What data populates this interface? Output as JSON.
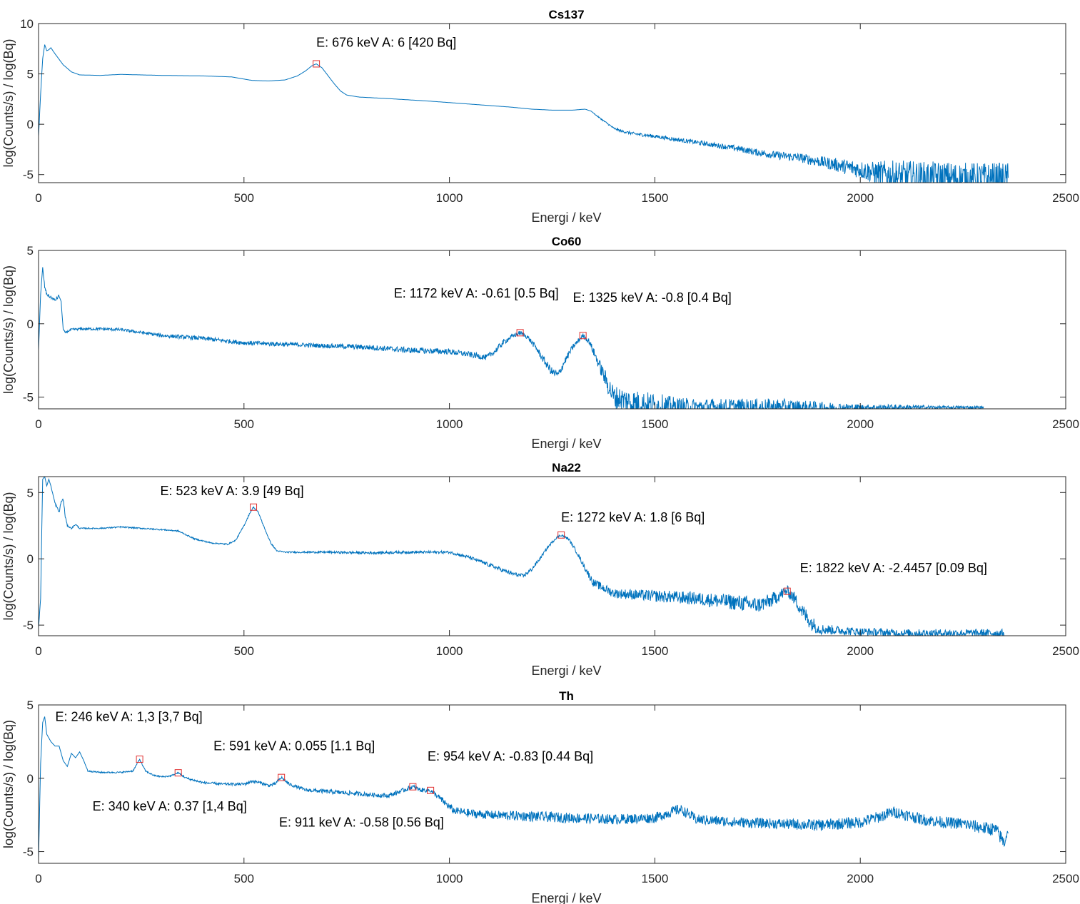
{
  "chart_data": [
    {
      "type": "line",
      "title": "Cs137",
      "xlabel": "Energi / keV",
      "ylabel": "log(Counts/s) / log(Bq)",
      "xlim": [
        0,
        2500
      ],
      "ylim": [
        -5.8,
        10
      ],
      "xticks": [
        "0",
        "500",
        "1000",
        "1500",
        "2000",
        "2500"
      ],
      "yticks": [
        {
          "value": 10,
          "label": "10"
        },
        {
          "value": 5,
          "label": "5"
        },
        {
          "value": 0,
          "label": "0"
        },
        {
          "value": -5,
          "label": "-5"
        }
      ],
      "grid": false,
      "series": [
        {
          "color": "#0072BD",
          "x": [
            0,
            5,
            10,
            15,
            20,
            25,
            30,
            40,
            60,
            80,
            100,
            150,
            200,
            300,
            400,
            470,
            520,
            560,
            600,
            630,
            650,
            665,
            676,
            690,
            705,
            720,
            735,
            750,
            780,
            850,
            950,
            1050,
            1150,
            1200,
            1250,
            1300,
            1330,
            1345,
            1360,
            1380,
            1400,
            1420,
            1450,
            1500,
            1550,
            1600,
            1650,
            1700,
            1750,
            1800,
            1850,
            1900,
            1950,
            2000,
            2030,
            2060,
            2090,
            2120,
            2150,
            2200,
            2250,
            2300,
            2340,
            2360
          ],
          "y": [
            -1.2,
            3,
            6.5,
            7.9,
            7.3,
            7.4,
            7.6,
            7.0,
            5.9,
            5.2,
            4.9,
            4.85,
            4.95,
            4.85,
            4.8,
            4.7,
            4.35,
            4.3,
            4.4,
            4.8,
            5.3,
            5.8,
            6.0,
            5.6,
            4.8,
            4.0,
            3.3,
            2.9,
            2.7,
            2.55,
            2.3,
            2.0,
            1.7,
            1.5,
            1.4,
            1.4,
            1.5,
            1.3,
            0.8,
            0.2,
            -0.4,
            -0.7,
            -0.95,
            -1.2,
            -1.5,
            -1.8,
            -2.1,
            -2.4,
            -2.8,
            -3.1,
            -3.3,
            -3.7,
            -4.1,
            -4.5,
            -4.8,
            -5.0,
            -5.2,
            -5.2,
            -5.3,
            -5.3,
            -5.4,
            -5.4,
            -5.4,
            -5.4
          ],
          "noise": [
            0,
            0,
            0,
            0,
            0,
            0,
            0,
            0,
            0,
            0,
            0,
            0,
            0,
            0,
            0,
            0,
            0,
            0,
            0,
            0,
            0,
            0,
            0,
            0,
            0,
            0,
            0,
            0,
            0,
            0,
            0,
            0,
            0,
            0,
            0,
            0,
            0,
            0,
            0.05,
            0.08,
            0.1,
            0.12,
            0.15,
            0.18,
            0.2,
            0.22,
            0.25,
            0.3,
            0.35,
            0.4,
            0.45,
            0.55,
            0.7,
            0.9,
            1.1,
            1.4,
            1.6,
            1.6,
            1.6,
            1.6,
            1.6,
            1.6,
            1.6,
            1.6
          ]
        }
      ],
      "markers": [
        {
          "x": 676,
          "y": 6.0
        }
      ],
      "annotations": [
        {
          "text": "E: 676 keV A: 6 [420 Bq]",
          "x": 676,
          "y": 7.7,
          "anchor": "start",
          "dx": 0
        }
      ]
    },
    {
      "type": "line",
      "title": "Co60",
      "xlabel": "Energi / keV",
      "ylabel": "log(Counts/s) / log(Bq)",
      "xlim": [
        0,
        2500
      ],
      "ylim": [
        -5.8,
        5
      ],
      "xticks": [
        "0",
        "500",
        "1000",
        "1500",
        "2000",
        "2500"
      ],
      "yticks": [
        {
          "value": 5,
          "label": "5"
        },
        {
          "value": 0,
          "label": "0"
        },
        {
          "value": -5,
          "label": "-5"
        }
      ],
      "grid": false,
      "series": [
        {
          "color": "#0072BD",
          "x": [
            0,
            5,
            10,
            15,
            20,
            30,
            40,
            50,
            55,
            60,
            65,
            80,
            100,
            150,
            200,
            300,
            400,
            500,
            600,
            700,
            800,
            900,
            1000,
            1050,
            1090,
            1110,
            1130,
            1150,
            1172,
            1190,
            1210,
            1230,
            1250,
            1265,
            1280,
            1300,
            1325,
            1340,
            1360,
            1380,
            1400,
            1450,
            1500,
            1550,
            1600,
            1700,
            1800,
            1900,
            2000,
            2100,
            2200,
            2300
          ],
          "y": [
            -1.8,
            2.0,
            3.8,
            2.5,
            2.0,
            1.8,
            1.6,
            1.9,
            1.5,
            -0.4,
            -0.6,
            -0.4,
            -0.35,
            -0.35,
            -0.4,
            -0.8,
            -1.0,
            -1.3,
            -1.4,
            -1.5,
            -1.6,
            -1.8,
            -1.9,
            -2.1,
            -2.3,
            -1.9,
            -1.3,
            -0.9,
            -0.61,
            -0.9,
            -1.6,
            -2.5,
            -3.3,
            -3.5,
            -2.6,
            -1.6,
            -0.8,
            -1.2,
            -2.5,
            -3.8,
            -5.0,
            -5.4,
            -5.6,
            -5.7,
            -5.7,
            -5.7,
            -5.7,
            -5.7,
            -5.7,
            -5.7,
            -5.7,
            -5.7
          ],
          "noise": [
            0,
            0,
            0.1,
            0.1,
            0.1,
            0.1,
            0.1,
            0.1,
            0,
            0.05,
            0.05,
            0.08,
            0.08,
            0.1,
            0.1,
            0.12,
            0.15,
            0.15,
            0.15,
            0.15,
            0.18,
            0.2,
            0.2,
            0.2,
            0.2,
            0.2,
            0.2,
            0.15,
            0.15,
            0.15,
            0.2,
            0.25,
            0.3,
            0.3,
            0.25,
            0.2,
            0.15,
            0.2,
            0.35,
            0.6,
            0.8,
            0.9,
            0.9,
            0.7,
            0.6,
            0.6,
            0.6,
            0.4,
            0.2,
            0.2,
            0.1,
            0.1
          ]
        }
      ],
      "markers": [
        {
          "x": 1172,
          "y": -0.61
        },
        {
          "x": 1325,
          "y": -0.8
        }
      ],
      "annotations": [
        {
          "text": "E: 1172 keV A: -0.61 [0.5 Bq]",
          "x": 1172,
          "y": 1.8,
          "anchor": "end",
          "dx": 54
        },
        {
          "text": "E: 1325 keV A: -0.8 [0.4 Bq]",
          "x": 1325,
          "y": 1.5,
          "anchor": "start",
          "dx": -14
        }
      ]
    },
    {
      "type": "line",
      "title": "Na22",
      "xlabel": "Energi / keV",
      "ylabel": "log(Counts/s) / log(Bq)",
      "xlim": [
        0,
        2500
      ],
      "ylim": [
        -5.8,
        6.2
      ],
      "xticks": [
        "0",
        "500",
        "1000",
        "1500",
        "2000",
        "2500"
      ],
      "yticks": [
        {
          "value": 5,
          "label": "5"
        },
        {
          "value": 0,
          "label": "0"
        },
        {
          "value": -5,
          "label": "-5"
        }
      ],
      "grid": false,
      "series": [
        {
          "color": "#0072BD",
          "x": [
            0,
            5,
            10,
            15,
            20,
            25,
            30,
            40,
            50,
            55,
            60,
            65,
            70,
            80,
            90,
            100,
            150,
            200,
            250,
            300,
            340,
            380,
            420,
            460,
            480,
            500,
            515,
            523,
            535,
            550,
            565,
            580,
            600,
            700,
            800,
            900,
            1000,
            1050,
            1100,
            1150,
            1180,
            1200,
            1220,
            1240,
            1260,
            1272,
            1290,
            1310,
            1330,
            1350,
            1400,
            1500,
            1600,
            1700,
            1750,
            1780,
            1800,
            1822,
            1840,
            1860,
            1880,
            1900,
            2000,
            2100,
            2200,
            2300,
            2350
          ],
          "y": [
            -5.2,
            -3,
            6.0,
            6.2,
            5.5,
            6.0,
            5.5,
            4.2,
            3.5,
            4.3,
            4.5,
            3.2,
            2.5,
            2.3,
            2.6,
            2.3,
            2.3,
            2.4,
            2.3,
            2.2,
            2.1,
            1.5,
            1.2,
            1.1,
            1.4,
            2.5,
            3.5,
            3.9,
            3.5,
            2.3,
            1.2,
            0.6,
            0.5,
            0.5,
            0.45,
            0.5,
            0.5,
            0.1,
            -0.5,
            -1.1,
            -1.3,
            -0.8,
            0.0,
            0.9,
            1.6,
            1.8,
            1.5,
            0.5,
            -0.7,
            -1.8,
            -2.6,
            -2.8,
            -3.0,
            -3.3,
            -3.5,
            -3.2,
            -2.8,
            -2.4,
            -3.0,
            -4.0,
            -4.8,
            -5.3,
            -5.5,
            -5.6,
            -5.6,
            -5.6,
            -5.6
          ],
          "noise": [
            0,
            0,
            0,
            0,
            0,
            0,
            0,
            0.1,
            0.1,
            0.1,
            0.1,
            0.1,
            0.05,
            0.05,
            0.05,
            0.05,
            0.05,
            0.05,
            0.05,
            0.05,
            0.05,
            0.05,
            0.05,
            0.05,
            0.05,
            0.05,
            0.05,
            0.05,
            0.05,
            0.05,
            0.05,
            0.05,
            0.05,
            0.08,
            0.1,
            0.1,
            0.1,
            0.12,
            0.15,
            0.15,
            0.15,
            0.15,
            0.12,
            0.1,
            0.1,
            0.1,
            0.1,
            0.15,
            0.2,
            0.3,
            0.35,
            0.45,
            0.5,
            0.6,
            0.6,
            0.55,
            0.5,
            0.4,
            0.5,
            0.6,
            0.6,
            0.4,
            0.3,
            0.3,
            0.3,
            0.3,
            0.3
          ]
        }
      ],
      "markers": [
        {
          "x": 523,
          "y": 3.9
        },
        {
          "x": 1272,
          "y": 1.8
        },
        {
          "x": 1822,
          "y": -2.4457
        }
      ],
      "annotations": [
        {
          "text": "E: 523 keV A: 3.9 [49 Bq]",
          "x": 523,
          "y": 4.8,
          "anchor": "middle",
          "dx": -30
        },
        {
          "text": "E: 1272 keV A: 1.8 [6 Bq]",
          "x": 1272,
          "y": 2.8,
          "anchor": "start",
          "dx": 0
        },
        {
          "text": "E: 1822 keV A: -2.4457 [0.09 Bq]",
          "x": 1822,
          "y": -1.0,
          "anchor": "start",
          "dx": 18
        }
      ]
    },
    {
      "type": "line",
      "title": "Th",
      "xlabel": "Energi / keV",
      "ylabel": "log(Counts/s) / log(Bq)",
      "xlim": [
        0,
        2500
      ],
      "ylim": [
        -5.8,
        5
      ],
      "xticks": [
        "0",
        "500",
        "1000",
        "1500",
        "2000",
        "2500"
      ],
      "yticks": [
        {
          "value": 5,
          "label": "5"
        },
        {
          "value": 0,
          "label": "0"
        },
        {
          "value": -5,
          "label": "-5"
        }
      ],
      "grid": false,
      "series": [
        {
          "color": "#0072BD",
          "x": [
            0,
            5,
            10,
            15,
            20,
            30,
            40,
            50,
            60,
            70,
            80,
            90,
            100,
            110,
            120,
            150,
            200,
            230,
            246,
            260,
            280,
            300,
            320,
            340,
            360,
            400,
            450,
            500,
            520,
            540,
            560,
            575,
            591,
            610,
            650,
            700,
            750,
            800,
            850,
            880,
            911,
            930,
            954,
            970,
            990,
            1010,
            1050,
            1100,
            1200,
            1300,
            1400,
            1500,
            1540,
            1560,
            1580,
            1600,
            1700,
            1800,
            1900,
            2000,
            2050,
            2080,
            2100,
            2150,
            2200,
            2250,
            2300,
            2330,
            2350,
            2360
          ],
          "y": [
            -5.5,
            1,
            3.8,
            4.2,
            3.0,
            2.5,
            2.2,
            2.2,
            1.2,
            0.8,
            1.7,
            1.4,
            1.8,
            1.2,
            0.5,
            0.4,
            0.4,
            0.5,
            1.3,
            0.5,
            0.2,
            0.1,
            0.15,
            0.37,
            0.0,
            -0.3,
            -0.4,
            -0.4,
            -0.2,
            -0.3,
            -0.5,
            -0.4,
            0.055,
            -0.4,
            -0.8,
            -0.9,
            -1.0,
            -1.1,
            -1.2,
            -0.9,
            -0.58,
            -0.8,
            -0.83,
            -1.2,
            -1.7,
            -2.2,
            -2.4,
            -2.5,
            -2.6,
            -2.7,
            -2.8,
            -2.7,
            -2.3,
            -2.1,
            -2.4,
            -2.8,
            -3.0,
            -3.1,
            -3.2,
            -3.0,
            -2.6,
            -2.3,
            -2.4,
            -2.8,
            -3.0,
            -3.1,
            -3.4,
            -3.5,
            -4.4,
            -3.5
          ],
          "noise": [
            0,
            0,
            0,
            0,
            0,
            0,
            0,
            0,
            0,
            0,
            0,
            0,
            0,
            0,
            0.05,
            0.05,
            0.05,
            0.05,
            0.05,
            0.05,
            0.05,
            0.05,
            0.05,
            0.05,
            0.08,
            0.08,
            0.08,
            0.1,
            0.1,
            0.1,
            0.1,
            0.1,
            0.1,
            0.1,
            0.12,
            0.15,
            0.15,
            0.15,
            0.15,
            0.15,
            0.15,
            0.15,
            0.15,
            0.2,
            0.25,
            0.25,
            0.3,
            0.3,
            0.35,
            0.35,
            0.35,
            0.35,
            0.35,
            0.35,
            0.35,
            0.35,
            0.35,
            0.35,
            0.4,
            0.4,
            0.4,
            0.4,
            0.4,
            0.4,
            0.4,
            0.4,
            0.45,
            0.45,
            0.5,
            0.3
          ]
        }
      ],
      "markers": [
        {
          "x": 246,
          "y": 1.3
        },
        {
          "x": 340,
          "y": 0.37
        },
        {
          "x": 591,
          "y": 0.055
        },
        {
          "x": 911,
          "y": -0.58
        },
        {
          "x": 954,
          "y": -0.83
        }
      ],
      "annotations": [
        {
          "text": "E: 246 keV A: 1,3 [3,7 Bq]",
          "x": 246,
          "y": 3.9,
          "anchor": "middle",
          "dx": -15
        },
        {
          "text": "E: 340 keV A: 0.37 [1,4 Bq]",
          "x": 340,
          "y": -2.2,
          "anchor": "middle",
          "dx": -12
        },
        {
          "text": "E: 591 keV A: 0.055 [1.1 Bq]",
          "x": 591,
          "y": 1.9,
          "anchor": "middle",
          "dx": 18
        },
        {
          "text": "E: 911 keV A: -0.58 [0.56 Bq]",
          "x": 911,
          "y": -3.3,
          "anchor": "middle",
          "dx": -72
        },
        {
          "text": "E: 954 keV A: -0.83 [0.44 Bq]",
          "x": 954,
          "y": 1.2,
          "anchor": "middle",
          "dx": 112
        }
      ]
    }
  ]
}
